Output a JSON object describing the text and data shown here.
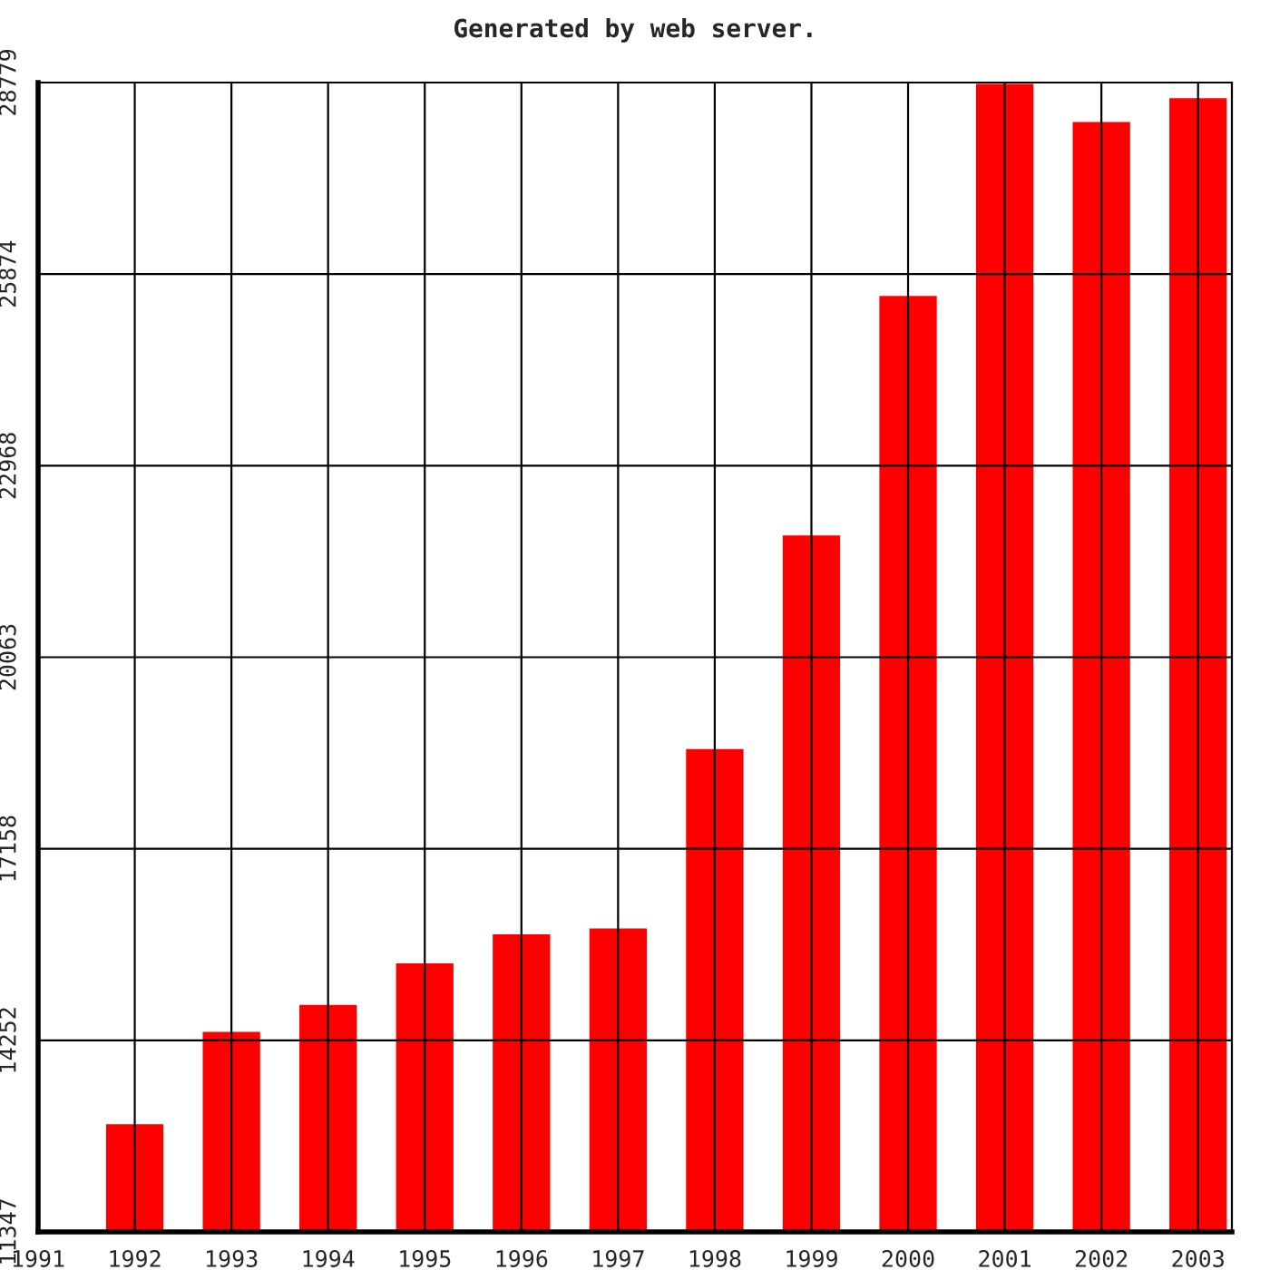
{
  "chart_data": {
    "type": "bar",
    "title": "Generated by web server.",
    "x": [
      1992,
      1993,
      1994,
      1995,
      1996,
      1997,
      1998,
      1999,
      2000,
      2001,
      2002,
      2003
    ],
    "values": [
      13000,
      14400,
      14810,
      15440,
      15880,
      15970,
      18690,
      21930,
      25560,
      28779,
      28200,
      28560
    ],
    "color": "#ff0000",
    "xlim": [
      1991,
      2003.35
    ],
    "xticks": [
      1991,
      1992,
      1993,
      1994,
      1995,
      1996,
      1997,
      1998,
      1999,
      2000,
      2001,
      2002,
      2003
    ],
    "ylim": [
      11347,
      28779
    ],
    "yticks": [
      11347,
      14252,
      17158,
      20063,
      22968,
      25874,
      28779
    ],
    "grid": true
  }
}
